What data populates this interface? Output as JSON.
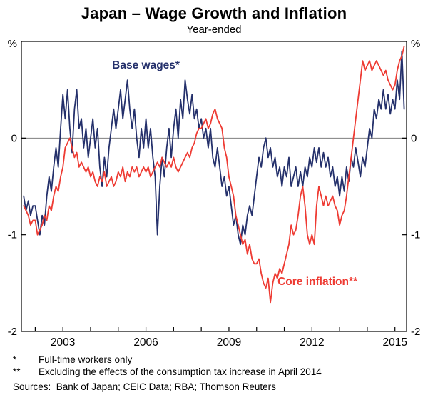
{
  "title": "Japan – Wage Growth and Inflation",
  "subtitle": "Year-ended",
  "footnotes": [
    {
      "marker": "*",
      "text": "Full-time workers only"
    },
    {
      "marker": "**",
      "text": "Excluding the effects of the consumption tax increase in April 2014"
    }
  ],
  "sources": "Sources:  Bank of Japan; CEIC Data; RBA; Thomson Reuters",
  "chart_data": {
    "type": "line",
    "title": "Japan – Wage Growth and Inflation",
    "subtitle": "Year-ended",
    "unit": "%",
    "x_domain": [
      2001.5,
      2015.42
    ],
    "ylim": [
      -2,
      1
    ],
    "yticks": [
      {
        "label": "%",
        "value": 1
      },
      {
        "label": "0",
        "value": 0
      },
      {
        "label": "-1",
        "value": -1
      },
      {
        "label": "-2",
        "value": -2
      }
    ],
    "xtick_labels": [
      2003,
      2006,
      2009,
      2012,
      2015
    ],
    "xticks_minor": [
      2002,
      2003,
      2004,
      2005,
      2006,
      2007,
      2008,
      2009,
      2010,
      2011,
      2012,
      2013,
      2014,
      2015
    ],
    "grid_lines": [
      0
    ],
    "x_start": 2001.5833,
    "x_step": 0.083333,
    "series": [
      {
        "id": "base-wages",
        "name": "Base wages*",
        "color": "#24306b",
        "values": [
          -0.6,
          -0.75,
          -0.65,
          -0.8,
          -0.7,
          -0.7,
          -0.85,
          -1.0,
          -0.8,
          -0.9,
          -0.6,
          -0.4,
          -0.55,
          -0.3,
          -0.1,
          -0.3,
          0.1,
          0.45,
          0.2,
          0.5,
          0.1,
          -0.15,
          0.3,
          0.5,
          0.1,
          0.2,
          -0.1,
          0.1,
          -0.2,
          0.0,
          0.2,
          -0.1,
          0.1,
          -0.3,
          -0.5,
          -0.2,
          -0.4,
          -0.1,
          0.1,
          0.3,
          0.1,
          0.3,
          0.5,
          0.2,
          0.4,
          0.6,
          0.3,
          0.1,
          0.3,
          0.0,
          -0.2,
          0.1,
          -0.1,
          0.2,
          -0.1,
          0.1,
          -0.2,
          -0.4,
          -1.0,
          -0.5,
          -0.2,
          -0.4,
          -0.1,
          0.1,
          -0.2,
          0.1,
          0.3,
          0.0,
          0.4,
          0.2,
          0.6,
          0.4,
          0.25,
          0.45,
          0.2,
          0.3,
          0.1,
          0.2,
          0.0,
          0.1,
          -0.1,
          0.1,
          -0.2,
          -0.3,
          -0.1,
          -0.3,
          -0.5,
          -0.4,
          -0.6,
          -0.5,
          -0.7,
          -0.9,
          -0.8,
          -1.0,
          -1.1,
          -0.9,
          -1.0,
          -0.8,
          -0.7,
          -0.8,
          -0.6,
          -0.4,
          -0.2,
          -0.3,
          -0.1,
          0.0,
          -0.2,
          -0.1,
          -0.3,
          -0.2,
          -0.4,
          -0.3,
          -0.5,
          -0.3,
          -0.4,
          -0.2,
          -0.5,
          -0.4,
          -0.3,
          -0.5,
          -0.35,
          -0.5,
          -0.3,
          -0.4,
          -0.2,
          -0.3,
          -0.1,
          -0.25,
          -0.1,
          -0.3,
          -0.15,
          -0.3,
          -0.2,
          -0.4,
          -0.3,
          -0.5,
          -0.4,
          -0.6,
          -0.4,
          -0.55,
          -0.3,
          -0.45,
          -0.2,
          -0.3,
          -0.1,
          -0.25,
          -0.4,
          -0.2,
          -0.3,
          -0.1,
          0.1,
          0.0,
          0.3,
          0.2,
          0.4,
          0.3,
          0.5,
          0.3,
          0.45,
          0.25,
          0.4,
          0.3,
          0.6,
          0.4,
          0.9,
          0.3
        ]
      },
      {
        "id": "core-inflation",
        "name": "Core inflation**",
        "color": "#ee3b33",
        "values": [
          -0.7,
          -0.75,
          -0.8,
          -0.9,
          -0.85,
          -0.85,
          -1.0,
          -0.95,
          -0.9,
          -0.8,
          -0.85,
          -0.7,
          -0.75,
          -0.6,
          -0.5,
          -0.55,
          -0.4,
          -0.3,
          -0.1,
          -0.05,
          0.0,
          -0.1,
          -0.2,
          -0.15,
          -0.3,
          -0.25,
          -0.3,
          -0.35,
          -0.3,
          -0.4,
          -0.35,
          -0.45,
          -0.5,
          -0.4,
          -0.45,
          -0.35,
          -0.5,
          -0.45,
          -0.4,
          -0.5,
          -0.45,
          -0.35,
          -0.4,
          -0.3,
          -0.45,
          -0.35,
          -0.4,
          -0.3,
          -0.35,
          -0.3,
          -0.4,
          -0.35,
          -0.3,
          -0.35,
          -0.3,
          -0.4,
          -0.35,
          -0.3,
          -0.25,
          -0.3,
          -0.2,
          -0.25,
          -0.3,
          -0.25,
          -0.3,
          -0.2,
          -0.3,
          -0.35,
          -0.3,
          -0.25,
          -0.2,
          -0.15,
          -0.2,
          -0.1,
          -0.05,
          0.05,
          0.1,
          0.1,
          0.15,
          0.2,
          0.1,
          0.15,
          0.25,
          0.3,
          0.2,
          0.15,
          0.1,
          -0.1,
          -0.2,
          -0.4,
          -0.5,
          -0.6,
          -0.8,
          -0.9,
          -1.0,
          -1.1,
          -1.05,
          -1.2,
          -1.1,
          -1.25,
          -1.3,
          -1.3,
          -1.25,
          -1.4,
          -1.5,
          -1.55,
          -1.45,
          -1.7,
          -1.5,
          -1.4,
          -1.45,
          -1.35,
          -1.4,
          -1.3,
          -1.2,
          -1.1,
          -0.9,
          -1.0,
          -0.95,
          -0.8,
          -0.6,
          -0.5,
          -0.7,
          -1.0,
          -1.1,
          -1.0,
          -1.1,
          -0.7,
          -0.5,
          -0.6,
          -0.7,
          -0.6,
          -0.7,
          -0.65,
          -0.6,
          -0.7,
          -0.75,
          -0.9,
          -0.8,
          -0.75,
          -0.6,
          -0.4,
          -0.2,
          0.0,
          0.2,
          0.4,
          0.6,
          0.8,
          0.7,
          0.75,
          0.8,
          0.7,
          0.75,
          0.8,
          0.75,
          0.7,
          0.65,
          0.7,
          0.6,
          0.55,
          0.5,
          0.55,
          0.7,
          0.8,
          0.85,
          0.95
        ]
      }
    ],
    "annotations": [
      {
        "id": "base-wages-label",
        "text": "Base wages*",
        "x": 2006.0,
        "y": 0.72,
        "color": "#24306b"
      },
      {
        "id": "core-inflation-label",
        "text": "Core inflation**",
        "x": 2012.2,
        "y": -1.52,
        "color": "#ee3b33"
      }
    ]
  }
}
